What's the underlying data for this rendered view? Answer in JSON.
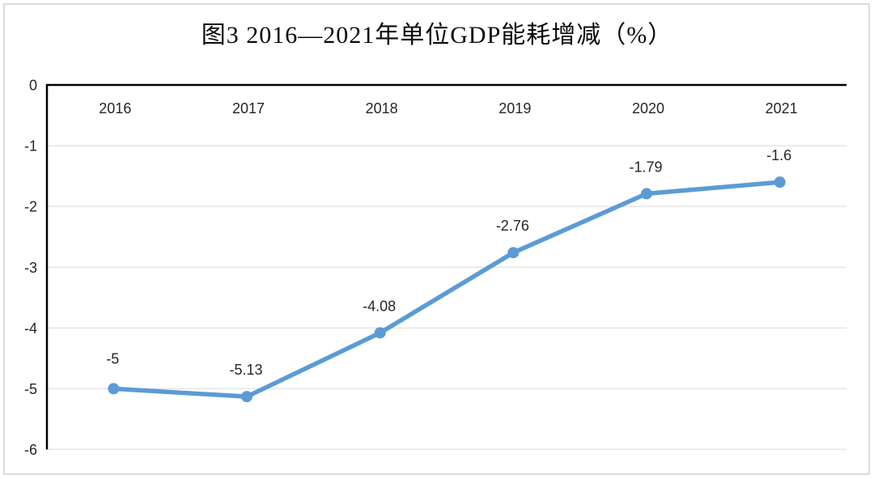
{
  "chart_data": {
    "type": "line",
    "title": "图3 2016—2021年单位GDP能耗增减（%）",
    "categories": [
      "2016",
      "2017",
      "2018",
      "2019",
      "2020",
      "2021"
    ],
    "values": [
      -5,
      -5.13,
      -4.08,
      -2.76,
      -1.79,
      -1.6
    ],
    "data_labels": [
      "-5",
      "-5.13",
      "-4.08",
      "-2.76",
      "-1.79",
      "-1.6"
    ],
    "y_ticks": [
      0,
      -1,
      -2,
      -3,
      -4,
      -5,
      -6
    ],
    "y_tick_labels": [
      "0",
      "-1",
      "-2",
      "-3",
      "-4",
      "-5",
      "-6"
    ],
    "ylim": [
      -6,
      0
    ],
    "grid": true,
    "legend": "none",
    "line_color": "#5B9BD5",
    "marker": "circle"
  }
}
